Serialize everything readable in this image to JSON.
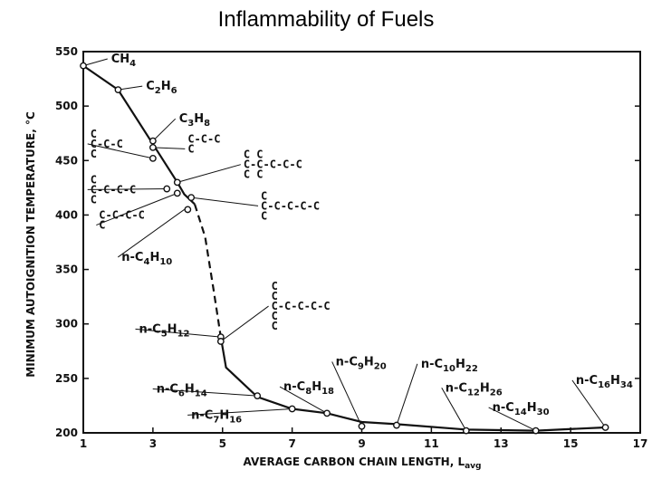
{
  "page": {
    "title": "Inflammability of Fuels"
  },
  "chart_data": {
    "type": "line",
    "title": "Inflammability of Fuels",
    "xlabel": "AVERAGE CARBON CHAIN LENGTH, L",
    "xlabel_sub": "avg",
    "ylabel": "MINIMUM AUTOIGNITION TEMPERATURE, °C",
    "xlim": [
      1,
      17
    ],
    "ylim": [
      200,
      550
    ],
    "xticks": [
      1,
      3,
      5,
      7,
      9,
      11,
      13,
      15,
      17
    ],
    "yticks": [
      200,
      250,
      300,
      350,
      400,
      450,
      500,
      550
    ],
    "grid": false,
    "series": [
      {
        "style": "solid",
        "points": [
          {
            "x": 1,
            "y": 537
          },
          {
            "x": 2,
            "y": 515
          },
          {
            "x": 3,
            "y": 465
          },
          {
            "x": 3.7,
            "y": 430
          },
          {
            "x": 3.9,
            "y": 419
          },
          {
            "x": 4.2,
            "y": 410
          }
        ]
      },
      {
        "style": "dashed",
        "points": [
          {
            "x": 4.2,
            "y": 410
          },
          {
            "x": 4.5,
            "y": 380
          },
          {
            "x": 4.75,
            "y": 330
          },
          {
            "x": 4.95,
            "y": 288
          }
        ]
      },
      {
        "style": "solid",
        "points": [
          {
            "x": 4.95,
            "y": 288
          },
          {
            "x": 5.1,
            "y": 260
          },
          {
            "x": 6,
            "y": 233
          },
          {
            "x": 7,
            "y": 222
          },
          {
            "x": 8,
            "y": 218
          },
          {
            "x": 9,
            "y": 210
          },
          {
            "x": 10,
            "y": 208
          },
          {
            "x": 12,
            "y": 203
          },
          {
            "x": 14,
            "y": 202
          },
          {
            "x": 16,
            "y": 205
          }
        ]
      }
    ],
    "points": [
      {
        "x": 1,
        "y": 537
      },
      {
        "x": 2,
        "y": 515
      },
      {
        "x": 3,
        "y": 468
      },
      {
        "x": 3,
        "y": 462
      },
      {
        "x": 3,
        "y": 452
      },
      {
        "x": 3.7,
        "y": 430
      },
      {
        "x": 3.4,
        "y": 424
      },
      {
        "x": 3.7,
        "y": 420
      },
      {
        "x": 4.1,
        "y": 416
      },
      {
        "x": 4.0,
        "y": 405
      },
      {
        "x": 4.95,
        "y": 288
      },
      {
        "x": 4.95,
        "y": 284
      },
      {
        "x": 6,
        "y": 234
      },
      {
        "x": 7,
        "y": 222
      },
      {
        "x": 8,
        "y": 218
      },
      {
        "x": 9,
        "y": 206
      },
      {
        "x": 10,
        "y": 207
      },
      {
        "x": 12,
        "y": 202
      },
      {
        "x": 14,
        "y": 202
      },
      {
        "x": 16,
        "y": 205
      }
    ],
    "annotations": [
      {
        "base": "CH",
        "sub": "4",
        "x": 1.8,
        "y": 540,
        "ax": 1,
        "ay": 537
      },
      {
        "base": "C",
        "sub": "2",
        "base2": "H",
        "sub2": "6",
        "x": 2.8,
        "y": 515,
        "ax": 2,
        "ay": 515
      },
      {
        "base": "C",
        "sub": "3",
        "base2": "H",
        "sub2": "8",
        "x": 3.75,
        "y": 485,
        "ax": 3,
        "ay": 468
      },
      {
        "base": "n-C",
        "sub": "4",
        "base2": "H",
        "sub2": "10",
        "x": 2.1,
        "y": 358,
        "ax": 3.9,
        "ay": 405
      },
      {
        "base": "n-C",
        "sub": "5",
        "base2": "H",
        "sub2": "12",
        "x": 2.6,
        "y": 292,
        "ax": 4.95,
        "ay": 288
      },
      {
        "base": "n-C",
        "sub": "6",
        "base2": "H",
        "sub2": "14",
        "x": 3.1,
        "y": 237,
        "ax": 6,
        "ay": 234
      },
      {
        "base": "n-C",
        "sub": "7",
        "base2": "H",
        "sub2": "16",
        "x": 4.1,
        "y": 213,
        "ax": 7,
        "ay": 222
      },
      {
        "base": "n-C",
        "sub": "8",
        "base2": "H",
        "sub2": "18",
        "x": 6.75,
        "y": 239,
        "ax": 8,
        "ay": 218
      },
      {
        "base": "n-C",
        "sub": "9",
        "base2": "H",
        "sub2": "20",
        "x": 8.25,
        "y": 262,
        "ax": 9,
        "ay": 206
      },
      {
        "base": "n-C",
        "sub": "10",
        "base2": "H",
        "sub2": "22",
        "x": 10.7,
        "y": 260,
        "ax": 10,
        "ay": 207
      },
      {
        "base": "n-C",
        "sub": "12",
        "base2": "H",
        "sub2": "26",
        "x": 11.4,
        "y": 238,
        "ax": 12,
        "ay": 202
      },
      {
        "base": "n-C",
        "sub": "14",
        "base2": "H",
        "sub2": "30",
        "x": 12.75,
        "y": 220,
        "ax": 14,
        "ay": 202
      },
      {
        "base": "n-C",
        "sub": "16",
        "base2": "H",
        "sub2": "34",
        "x": 15.15,
        "y": 245,
        "ax": 16,
        "ay": 205
      }
    ],
    "structures": [
      {
        "lines": [
          "C",
          "C-C-C",
          "C"
        ],
        "x": 1.2,
        "y": 462,
        "ax": 3,
        "ay": 452
      },
      {
        "lines": [
          "C-C-C",
          "C"
        ],
        "x": 4.0,
        "y": 462,
        "ax": 3,
        "ay": 462
      },
      {
        "lines": [
          "C",
          "C-C-C-C",
          "C"
        ],
        "x": 1.2,
        "y": 420,
        "ax": 3.4,
        "ay": 424
      },
      {
        "lines": [
          "C-C-C-C",
          "C"
        ],
        "x": 1.45,
        "y": 392,
        "ax": 3.7,
        "ay": 420
      },
      {
        "lines": [
          "C C",
          "C-C-C-C-C",
          "C C"
        ],
        "x": 5.6,
        "y": 443,
        "ax": 3.7,
        "ay": 430
      },
      {
        "lines": [
          "C",
          "C-C-C-C-C",
          "C"
        ],
        "x": 6.1,
        "y": 405,
        "ax": 4.1,
        "ay": 416
      },
      {
        "lines": [
          "C",
          "C",
          "C-C-C-C-C",
          "C",
          "C"
        ],
        "x": 6.4,
        "y": 313,
        "ax": 4.95,
        "ay": 284
      }
    ]
  }
}
